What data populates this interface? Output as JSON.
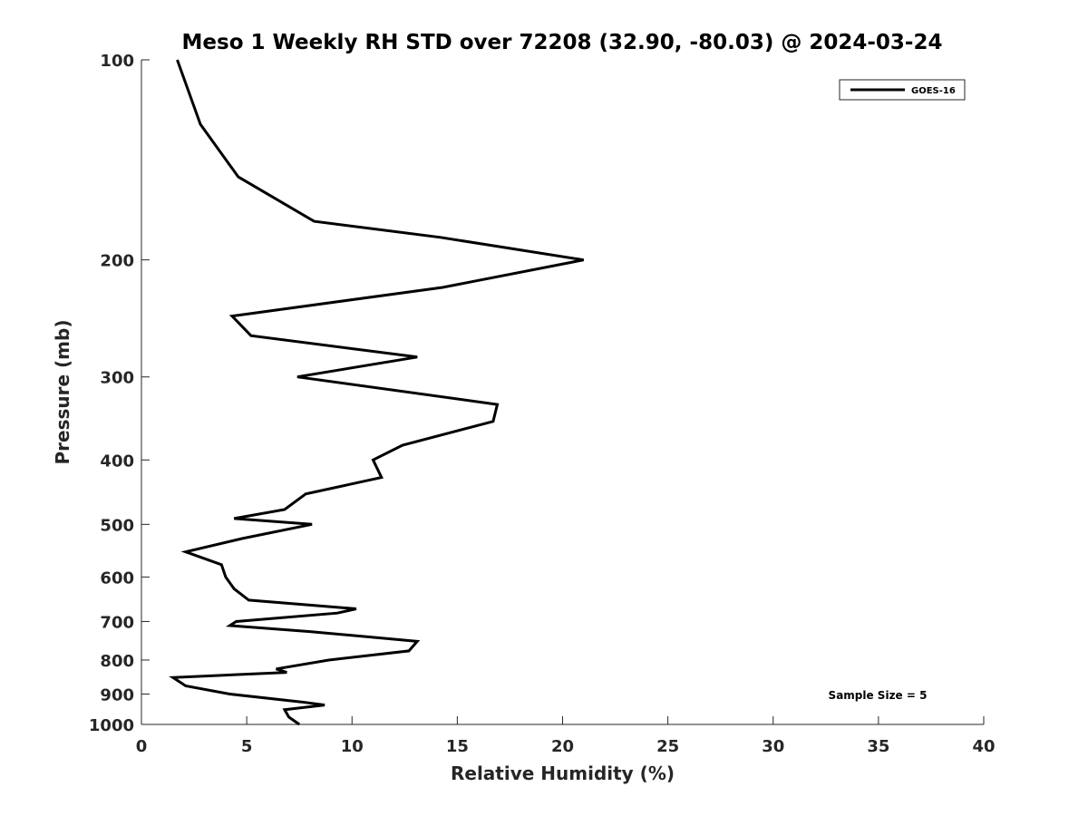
{
  "chart_data": {
    "type": "line",
    "title": "Meso 1 Weekly RH STD over 72208 (32.90, -80.03) @ 2024-03-24",
    "xlabel": "Relative Humidity (%)",
    "ylabel": "Pressure (mb)",
    "xlim": [
      0,
      40
    ],
    "ylim": [
      100,
      1000
    ],
    "y_scale": "log",
    "y_reversed": true,
    "x_ticks": [
      0,
      5,
      10,
      15,
      20,
      25,
      30,
      35,
      40
    ],
    "y_ticks": [
      100,
      200,
      300,
      400,
      500,
      600,
      700,
      800,
      900,
      1000
    ],
    "grid": false,
    "legend_position": "top-right",
    "annotation": "Sample Size = 5",
    "series": [
      {
        "name": "GOES-16",
        "color": "#000000",
        "points": [
          [
            1.7,
            100
          ],
          [
            2.8,
            125
          ],
          [
            4.6,
            150
          ],
          [
            8.2,
            175
          ],
          [
            14.2,
            185
          ],
          [
            21.0,
            200
          ],
          [
            14.3,
            220
          ],
          [
            4.3,
            243
          ],
          [
            5.2,
            260
          ],
          [
            13.1,
            280
          ],
          [
            7.4,
            300
          ],
          [
            16.9,
            330
          ],
          [
            16.7,
            350
          ],
          [
            12.4,
            380
          ],
          [
            11.0,
            400
          ],
          [
            11.4,
            425
          ],
          [
            7.8,
            450
          ],
          [
            6.8,
            475
          ],
          [
            4.4,
            490
          ],
          [
            8.1,
            500
          ],
          [
            4.8,
            525
          ],
          [
            2.1,
            550
          ],
          [
            3.8,
            575
          ],
          [
            4.0,
            600
          ],
          [
            4.4,
            625
          ],
          [
            5.1,
            650
          ],
          [
            10.2,
            670
          ],
          [
            9.3,
            680
          ],
          [
            4.5,
            700
          ],
          [
            4.2,
            710
          ],
          [
            8.0,
            725
          ],
          [
            13.1,
            750
          ],
          [
            12.7,
            775
          ],
          [
            8.9,
            800
          ],
          [
            6.4,
            825
          ],
          [
            6.9,
            835
          ],
          [
            1.5,
            850
          ],
          [
            2.1,
            875
          ],
          [
            4.2,
            900
          ],
          [
            7.6,
            925
          ],
          [
            8.7,
            935
          ],
          [
            6.8,
            950
          ],
          [
            7.0,
            975
          ],
          [
            7.5,
            1000
          ]
        ]
      }
    ]
  }
}
